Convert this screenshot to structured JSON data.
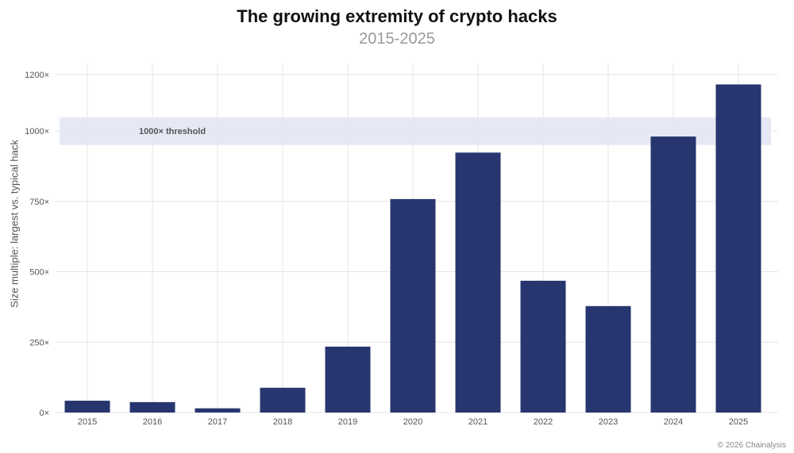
{
  "chart_data": {
    "type": "bar",
    "title": "The growing extremity of crypto hacks",
    "subtitle": "2015-2025",
    "ylabel": "Size multiple: largest vs. typical hack",
    "xlabel": "",
    "categories": [
      "2015",
      "2016",
      "2017",
      "2018",
      "2019",
      "2020",
      "2021",
      "2022",
      "2023",
      "2024",
      "2025"
    ],
    "values": [
      42,
      37,
      15,
      88,
      234,
      758,
      923,
      468,
      378,
      980,
      1165
    ],
    "ylim": [
      0,
      1200
    ],
    "yticks": [
      0,
      250,
      500,
      750,
      1000,
      1200
    ],
    "ytick_labels": [
      "0×",
      "250×",
      "500×",
      "750×",
      "1000×",
      "1200×"
    ],
    "threshold_band": {
      "label": "1000× threshold",
      "from": 950,
      "to": 1048
    },
    "grid": true,
    "bar_color": "#27366f",
    "band_color": "#e3e6f4"
  },
  "footer": {
    "credit": "© 2026 Chainalysis"
  }
}
